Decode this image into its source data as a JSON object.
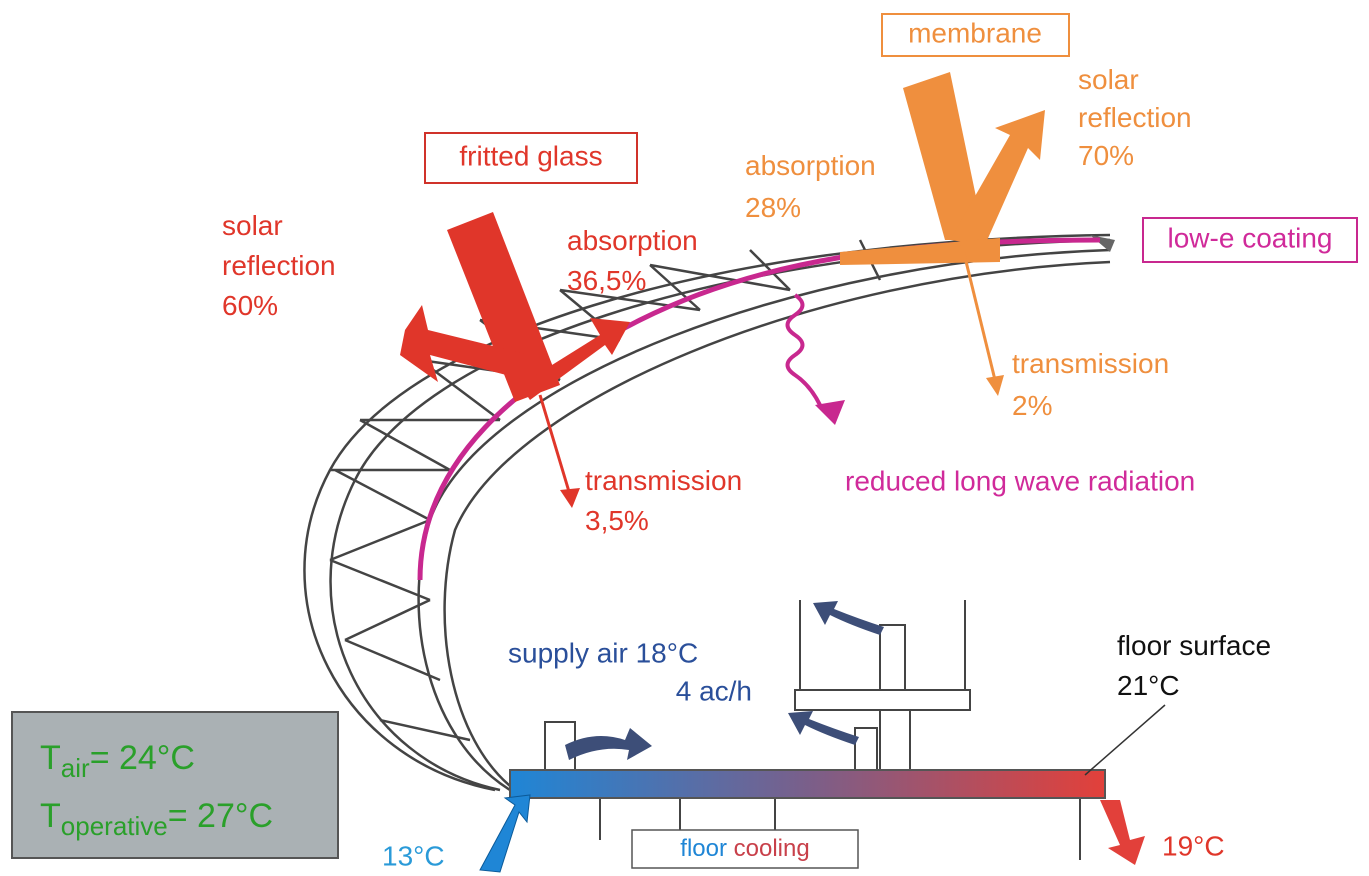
{
  "fritted_glass": {
    "label": "fritted glass",
    "solar_reflection": [
      "solar",
      "reflection",
      "60%"
    ],
    "absorption": [
      "absorption",
      "36,5%"
    ],
    "transmission": [
      "transmission",
      "3,5%"
    ]
  },
  "membrane": {
    "label": "membrane",
    "solar_reflection": [
      "solar",
      "reflection",
      "70%"
    ],
    "absorption": [
      "absorption",
      "28%"
    ],
    "transmission": [
      "transmission",
      "2%"
    ]
  },
  "low_e_coating": {
    "label": "low-e coating",
    "radiation": "reduced long wave radiation"
  },
  "ventilation": {
    "supply_air": "supply air 18°C",
    "air_change": "4 ac/h"
  },
  "floor": {
    "surface": [
      "floor surface",
      "21°C"
    ],
    "cooling": [
      "floor",
      "cooling"
    ],
    "inlet": "13°C",
    "outlet": "19°C"
  },
  "conditions": [
    {
      "symbol": "T",
      "subscript": "air",
      "value": "= 24°C"
    },
    {
      "symbol": "T",
      "subscript": "operative",
      "value": "= 27°C"
    }
  ]
}
